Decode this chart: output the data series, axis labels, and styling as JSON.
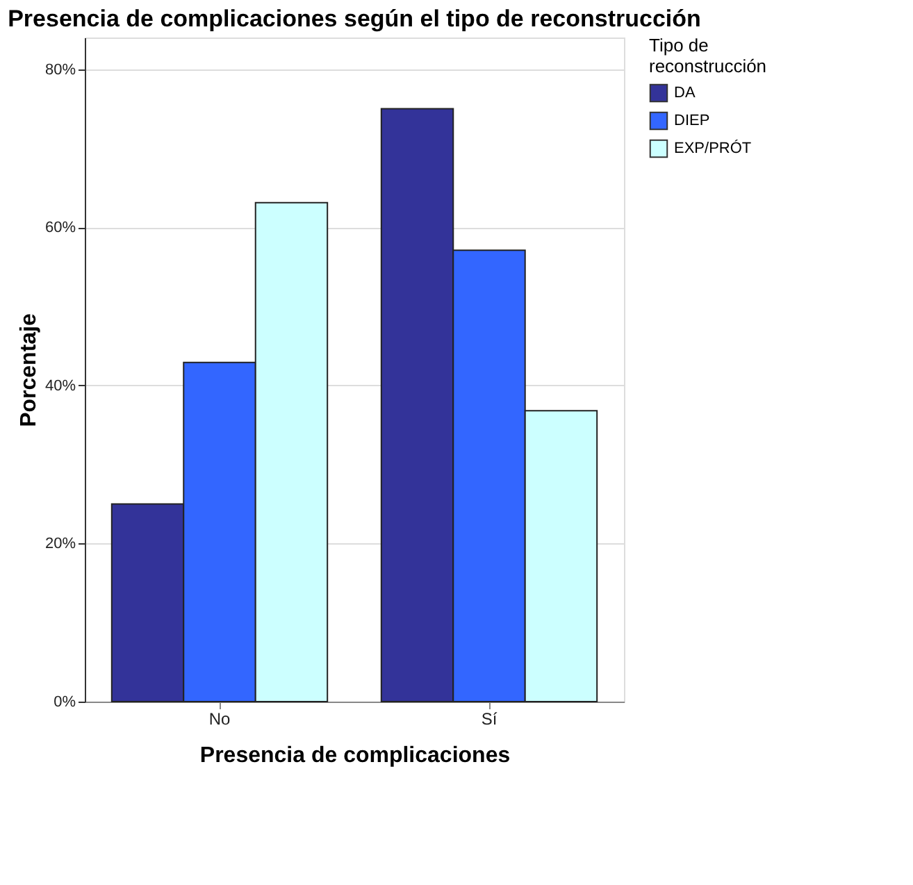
{
  "chart_data": {
    "type": "bar",
    "title": "Presencia de complicaciones según el tipo de reconstrucción",
    "xlabel": "Presencia de complicaciones",
    "ylabel": "Porcentaje",
    "legend_title": "Tipo de reconstrucción",
    "categories": [
      "No",
      "Sí"
    ],
    "series": [
      {
        "name": "DA",
        "color": "#333399",
        "values": [
          25,
          75
        ]
      },
      {
        "name": "DIEP",
        "color": "#3366ff",
        "values": [
          42.9,
          57.1
        ]
      },
      {
        "name": "EXP/PRÓT",
        "color": "#ccffff",
        "values": [
          63.1,
          36.8
        ]
      }
    ],
    "ylim": [
      0,
      84
    ],
    "yticks": [
      {
        "value": 0,
        "label": "0%"
      },
      {
        "value": 20,
        "label": "20%"
      },
      {
        "value": 40,
        "label": "40%"
      },
      {
        "value": 60,
        "label": "60%"
      },
      {
        "value": 80,
        "label": "80%"
      }
    ],
    "grid": "y",
    "legend": "top right"
  }
}
